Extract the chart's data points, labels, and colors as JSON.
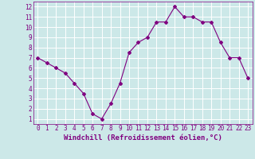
{
  "x": [
    0,
    1,
    2,
    3,
    4,
    5,
    6,
    7,
    8,
    9,
    10,
    11,
    12,
    13,
    14,
    15,
    16,
    17,
    18,
    19,
    20,
    21,
    22,
    23
  ],
  "y": [
    7.0,
    6.5,
    6.0,
    5.5,
    4.5,
    3.5,
    1.5,
    1.0,
    2.5,
    4.5,
    7.5,
    8.5,
    9.0,
    10.5,
    10.5,
    12.0,
    11.0,
    11.0,
    10.5,
    10.5,
    8.5,
    7.0,
    7.0,
    5.0
  ],
  "line_color": "#800080",
  "marker": "D",
  "marker_size": 2,
  "line_width": 0.8,
  "xlabel": "Windchill (Refroidissement éolien,°C)",
  "xlim": [
    -0.5,
    23.5
  ],
  "ylim": [
    0.5,
    12.5
  ],
  "xticks": [
    0,
    1,
    2,
    3,
    4,
    5,
    6,
    7,
    8,
    9,
    10,
    11,
    12,
    13,
    14,
    15,
    16,
    17,
    18,
    19,
    20,
    21,
    22,
    23
  ],
  "yticks": [
    1,
    2,
    3,
    4,
    5,
    6,
    7,
    8,
    9,
    10,
    11,
    12
  ],
  "bg_color": "#cce8e8",
  "grid_color": "#ffffff",
  "font_color": "#800080",
  "tick_fontsize": 5.5,
  "xlabel_fontsize": 6.5
}
